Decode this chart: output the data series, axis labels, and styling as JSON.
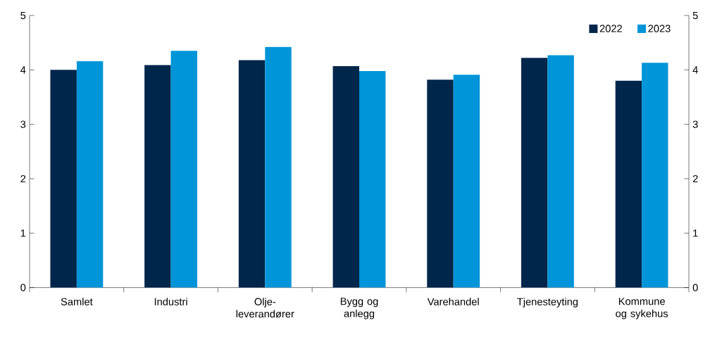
{
  "chart_data": {
    "type": "bar",
    "categories": [
      "Samlet",
      "Industri",
      "Olje-leverandører",
      "Bygg og anlegg",
      "Varehandel",
      "Tjenesteyting",
      "Kommune og sykehus"
    ],
    "series": [
      {
        "name": "2022",
        "color": "#00264b",
        "values": [
          4.0,
          4.09,
          4.18,
          4.07,
          3.82,
          4.22,
          3.8
        ]
      },
      {
        "name": "2023",
        "color": "#0095d8",
        "values": [
          4.16,
          4.35,
          4.42,
          3.98,
          3.91,
          4.27,
          4.13
        ]
      }
    ],
    "ylim": [
      0,
      5
    ],
    "yticks": [
      0,
      1,
      2,
      3,
      4,
      5
    ],
    "y2lim": [
      0,
      5
    ],
    "y2ticks": [
      0,
      1,
      2,
      3,
      4,
      5
    ],
    "grid": false,
    "legend": "top right"
  }
}
